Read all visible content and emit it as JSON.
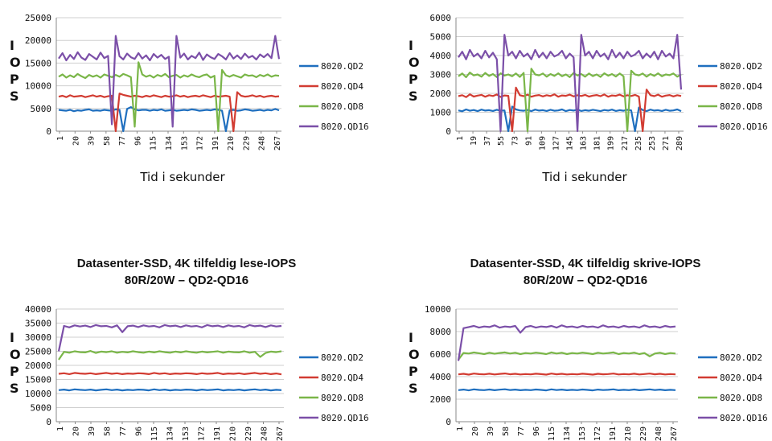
{
  "chart_data": [
    {
      "type": "line",
      "title": "",
      "ylabel": "IOPS",
      "xlabel": "Tid i sekunder",
      "ylim": [
        0,
        25000
      ],
      "yticks": [
        0,
        5000,
        10000,
        15000,
        20000,
        25000
      ],
      "xticks": [
        "1",
        "20",
        "39",
        "58",
        "77",
        "96",
        "115",
        "134",
        "153",
        "172",
        "191",
        "210",
        "229",
        "248",
        "267"
      ],
      "legend_position": "right",
      "grid": true,
      "series": [
        {
          "name": "8020.QD2",
          "color": "#1f6fbf",
          "values": [
            4700,
            4600,
            4500,
            4700,
            4400,
            4600,
            4500,
            4700,
            4800,
            4500,
            4600,
            4500,
            4700,
            4600,
            4500,
            4800,
            4700,
            0,
            4900,
            5300,
            4800,
            4600,
            4700,
            4700,
            4500,
            4700,
            4600,
            4800,
            4500,
            4600,
            4700,
            4500,
            4600,
            4700,
            4600,
            4800,
            4700,
            4500,
            4600,
            4700,
            4600,
            4800,
            4700,
            4500,
            0,
            4600,
            4700,
            4500,
            4600,
            4800,
            4700,
            4500,
            4600,
            4700,
            4500,
            4700,
            4600,
            4900,
            4600
          ]
        },
        {
          "name": "8020.QD4",
          "color": "#d23c32",
          "values": [
            7600,
            7800,
            7500,
            7900,
            7600,
            7700,
            7800,
            7500,
            7700,
            7900,
            7600,
            7800,
            7500,
            7700,
            7800,
            0,
            8300,
            8000,
            7800,
            7600,
            7800,
            7700,
            7500,
            7800,
            7600,
            7900,
            7700,
            7500,
            7800,
            7600,
            7700,
            7900,
            7600,
            7800,
            7500,
            7700,
            7800,
            7600,
            7900,
            7700,
            7500,
            7800,
            7600,
            7700,
            7800,
            7600,
            0,
            8600,
            7800,
            7600,
            7700,
            7900,
            7600,
            7800,
            7500,
            7700,
            7800,
            7600,
            7700
          ]
        },
        {
          "name": "8020.QD8",
          "color": "#7ab648",
          "values": [
            12000,
            12500,
            11800,
            12300,
            11900,
            12600,
            12100,
            11700,
            12400,
            12000,
            12300,
            11800,
            12500,
            12200,
            11900,
            12400,
            12000,
            12600,
            12300,
            11900,
            1000,
            15200,
            12500,
            12000,
            12300,
            11800,
            12400,
            12100,
            12600,
            11900,
            12200,
            12400,
            11800,
            12300,
            12000,
            12500,
            12100,
            11900,
            12300,
            12500,
            11800,
            12200,
            0,
            13500,
            12300,
            12000,
            12400,
            12100,
            11800,
            12500,
            12200,
            12300,
            11900,
            12400,
            12100,
            12500,
            12000,
            12300,
            12200
          ]
        },
        {
          "name": "8020.QD16",
          "color": "#7b4fa8",
          "values": [
            16000,
            17200,
            15600,
            16800,
            15900,
            17400,
            16200,
            15700,
            17000,
            16400,
            15800,
            17300,
            16100,
            16600,
            1500,
            21000,
            16500,
            15800,
            17100,
            16300,
            15900,
            17200,
            16000,
            16700,
            15600,
            17000,
            16200,
            16800,
            15900,
            16400,
            1000,
            21000,
            16200,
            17100,
            15800,
            16600,
            16100,
            17300,
            15700,
            16900,
            16300,
            15900,
            17000,
            16500,
            15800,
            17200,
            16000,
            16700,
            15900,
            17100,
            16200,
            16600,
            15800,
            16900,
            16300,
            17000,
            16100,
            21000,
            15900
          ]
        }
      ]
    },
    {
      "type": "line",
      "title": "",
      "ylabel": "IOPS",
      "xlabel": "Tid i sekunder",
      "ylim": [
        0,
        6000
      ],
      "yticks": [
        0,
        1000,
        2000,
        3000,
        4000,
        5000,
        6000
      ],
      "xticks": [
        "1",
        "19",
        "37",
        "55",
        "73",
        "91",
        "109",
        "127",
        "145",
        "163",
        "181",
        "199",
        "217",
        "235",
        "253",
        "271",
        "289"
      ],
      "legend_position": "right",
      "grid": true,
      "series": [
        {
          "name": "8020.QD2",
          "color": "#1f6fbf",
          "values": [
            1100,
            1050,
            1150,
            1080,
            1120,
            1060,
            1140,
            1090,
            1110,
            1070,
            1130,
            1080,
            1100,
            0,
            1300,
            1150,
            1100,
            1080,
            1120,
            1060,
            1140,
            1090,
            1110,
            1070,
            1130,
            1080,
            1100,
            1150,
            1060,
            1120,
            1090,
            1140,
            1070,
            1110,
            1080,
            1130,
            1100,
            1060,
            1120,
            1090,
            1140,
            1070,
            1110,
            1080,
            1130,
            1100,
            0,
            1250,
            1120,
            1060,
            1140,
            1090,
            1110,
            1070,
            1130,
            1080,
            1100,
            1150,
            1060
          ]
        },
        {
          "name": "8020.QD4",
          "color": "#d23c32",
          "values": [
            1850,
            1900,
            1800,
            1950,
            1830,
            1880,
            1920,
            1820,
            1900,
            1860,
            1940,
            1810,
            1890,
            1870,
            0,
            2300,
            1900,
            1850,
            1930,
            1820,
            1880,
            1910,
            1840,
            1900,
            1860,
            1950,
            1820,
            1890,
            1870,
            1930,
            1840,
            1900,
            1860,
            1920,
            1830,
            1880,
            1910,
            1850,
            1940,
            1820,
            1890,
            1870,
            1930,
            1840,
            1900,
            1860,
            1920,
            1830,
            0,
            2200,
            1900,
            1850,
            1930,
            1820,
            1880,
            1910,
            1840,
            1900,
            1860
          ]
        },
        {
          "name": "8020.QD8",
          "color": "#7ab648",
          "values": [
            2900,
            3050,
            2850,
            3100,
            2950,
            3000,
            2880,
            3080,
            2920,
            3020,
            2860,
            3060,
            2940,
            3000,
            2900,
            3050,
            2870,
            3080,
            0,
            3300,
            3000,
            2950,
            3050,
            2880,
            3020,
            2920,
            3060,
            2900,
            3000,
            2860,
            3080,
            2940,
            3020,
            2880,
            3050,
            2910,
            3000,
            2870,
            3060,
            2930,
            3020,
            2890,
            3050,
            2900,
            0,
            3200,
            3000,
            2950,
            3050,
            2880,
            3020,
            2920,
            3060,
            2900,
            3000,
            2960,
            3050,
            2880,
            3000
          ]
        },
        {
          "name": "8020.QD16",
          "color": "#7b4fa8",
          "values": [
            3900,
            4200,
            3800,
            4300,
            3950,
            4100,
            3850,
            4250,
            3900,
            4150,
            3800,
            0,
            5100,
            4000,
            4200,
            3850,
            4250,
            3950,
            4100,
            3800,
            4300,
            3900,
            4150,
            3850,
            4200,
            3950,
            4050,
            4250,
            3850,
            4100,
            3900,
            0,
            5100,
            4000,
            4200,
            3850,
            4250,
            3950,
            4100,
            3800,
            4300,
            3900,
            4150,
            3850,
            4200,
            3950,
            4050,
            4250,
            3850,
            4100,
            3900,
            4200,
            3800,
            4250,
            3950,
            4100,
            3850,
            5100,
            2200
          ]
        }
      ]
    },
    {
      "type": "line",
      "title": "Datasenter-SSD, 4K tilfeldig lese-IOPS\n80R/20W – QD2-QD16",
      "ylabel": "IOPS",
      "xlabel": "",
      "ylim": [
        0,
        40000
      ],
      "yticks": [
        0,
        5000,
        10000,
        15000,
        20000,
        25000,
        30000,
        35000,
        40000
      ],
      "xticks": [
        "1",
        "20",
        "39",
        "58",
        "77",
        "96",
        "115",
        "134",
        "153",
        "172",
        "191",
        "210",
        "229",
        "248",
        "267"
      ],
      "legend_position": "right",
      "grid": true,
      "series": [
        {
          "name": "8020.QD2",
          "color": "#1f6fbf",
          "values": [
            11200,
            11400,
            11100,
            11500,
            11300,
            11200,
            11400,
            11100,
            11300,
            11500,
            11200,
            11400,
            11100,
            11300,
            11200,
            11400,
            11300,
            11100,
            11500,
            11200,
            11400,
            11100,
            11300,
            11200,
            11400,
            11300,
            11100,
            11400,
            11200,
            11300,
            11500,
            11100,
            11300,
            11200,
            11400,
            11100,
            11300,
            11500,
            11200,
            11400,
            11100,
            11300,
            11200
          ]
        },
        {
          "name": "8020.QD4",
          "color": "#d23c32",
          "values": [
            17000,
            17200,
            16900,
            17300,
            17100,
            17000,
            17200,
            16900,
            17100,
            17300,
            17000,
            17200,
            16900,
            17100,
            17000,
            17200,
            17100,
            16900,
            17300,
            17000,
            17200,
            16900,
            17100,
            17000,
            17200,
            17100,
            16900,
            17200,
            17000,
            17100,
            17300,
            16900,
            17100,
            17000,
            17200,
            16900,
            17100,
            17300,
            17000,
            17200,
            16900,
            17100,
            16800
          ]
        },
        {
          "name": "8020.QD8",
          "color": "#7ab648",
          "values": [
            22000,
            24800,
            24500,
            25000,
            24700,
            24600,
            25100,
            24400,
            24900,
            24700,
            25000,
            24500,
            24800,
            24600,
            25000,
            24700,
            24500,
            24900,
            24600,
            25000,
            24700,
            24500,
            24900,
            24600,
            25000,
            24700,
            24500,
            24900,
            24600,
            24800,
            25000,
            24500,
            24900,
            24700,
            24600,
            25000,
            24500,
            24800,
            23000,
            24400,
            24900,
            24700,
            25000
          ]
        },
        {
          "name": "8020.QD16",
          "color": "#7b4fa8",
          "values": [
            25000,
            34000,
            33500,
            34200,
            33800,
            34100,
            33600,
            34300,
            33900,
            34000,
            33500,
            34200,
            31800,
            33900,
            34100,
            33600,
            34200,
            33800,
            34000,
            33500,
            34300,
            33900,
            34100,
            33600,
            34200,
            33800,
            34000,
            33500,
            34300,
            33900,
            34100,
            33600,
            34200,
            33800,
            34000,
            33500,
            34300,
            33900,
            34100,
            33600,
            34200,
            33800,
            34000
          ]
        }
      ]
    },
    {
      "type": "line",
      "title": "Datasenter-SSD, 4K tilfeldig skrive-IOPS\n80R/20W – QD2-QD16",
      "ylabel": "IOPS",
      "xlabel": "",
      "ylim": [
        0,
        10000
      ],
      "yticks": [
        0,
        2000,
        4000,
        6000,
        8000,
        10000
      ],
      "xticks": [
        "1",
        "20",
        "39",
        "58",
        "77",
        "96",
        "115",
        "134",
        "153",
        "172",
        "191",
        "210",
        "229",
        "248",
        "267"
      ],
      "legend_position": "right",
      "grid": true,
      "series": [
        {
          "name": "8020.QD2",
          "color": "#1f6fbf",
          "values": [
            2800,
            2850,
            2780,
            2870,
            2820,
            2800,
            2860,
            2790,
            2840,
            2880,
            2810,
            2850,
            2790,
            2830,
            2800,
            2860,
            2820,
            2780,
            2870,
            2810,
            2850,
            2790,
            2830,
            2800,
            2860,
            2820,
            2780,
            2850,
            2810,
            2830,
            2870,
            2790,
            2830,
            2800,
            2860,
            2790,
            2830,
            2870,
            2810,
            2850,
            2790,
            2830,
            2800
          ]
        },
        {
          "name": "8020.QD4",
          "color": "#d23c32",
          "values": [
            4200,
            4250,
            4180,
            4270,
            4220,
            4200,
            4260,
            4190,
            4240,
            4280,
            4210,
            4250,
            4190,
            4230,
            4200,
            4260,
            4220,
            4180,
            4270,
            4210,
            4250,
            4190,
            4230,
            4200,
            4260,
            4220,
            4180,
            4250,
            4210,
            4230,
            4270,
            4190,
            4230,
            4200,
            4260,
            4190,
            4230,
            4270,
            4210,
            4250,
            4190,
            4230,
            4200
          ]
        },
        {
          "name": "8020.QD8",
          "color": "#7ab648",
          "values": [
            5500,
            6100,
            6050,
            6150,
            6080,
            6000,
            6120,
            6030,
            6100,
            6150,
            6050,
            6120,
            6000,
            6090,
            6050,
            6130,
            6070,
            6000,
            6150,
            6050,
            6120,
            6000,
            6090,
            6050,
            6130,
            6070,
            6000,
            6120,
            6050,
            6090,
            6150,
            6000,
            6090,
            6050,
            6130,
            6000,
            6090,
            5800,
            6050,
            6120,
            6000,
            6090,
            6050
          ]
        },
        {
          "name": "8020.QD16",
          "color": "#7b4fa8",
          "values": [
            5400,
            8300,
            8400,
            8500,
            8350,
            8450,
            8400,
            8550,
            8350,
            8450,
            8400,
            8500,
            7900,
            8400,
            8500,
            8350,
            8450,
            8400,
            8500,
            8350,
            8550,
            8400,
            8450,
            8350,
            8500,
            8400,
            8450,
            8350,
            8550,
            8400,
            8450,
            8350,
            8500,
            8400,
            8450,
            8350,
            8550,
            8400,
            8450,
            8350,
            8500,
            8400,
            8450
          ]
        }
      ]
    }
  ]
}
